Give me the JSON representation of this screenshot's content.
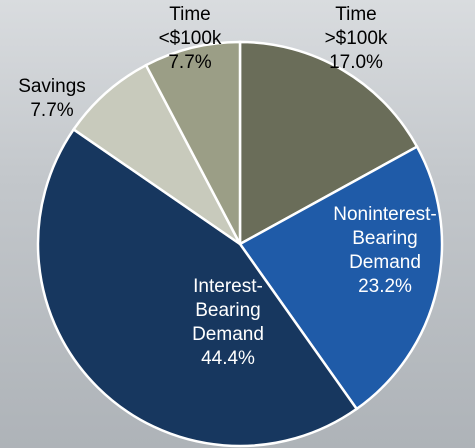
{
  "chart_data": {
    "type": "pie",
    "categories": [
      "Time >$100k",
      "Noninterest-Bearing Demand",
      "Interest-Bearing Demand",
      "Savings",
      "Time <$100k"
    ],
    "values": [
      17.0,
      23.2,
      44.4,
      7.7,
      7.7
    ],
    "value_labels": [
      "17.0%",
      "23.2%",
      "44.4%",
      "7.7%",
      "7.7%"
    ],
    "colors": [
      "#6a6d59",
      "#1f5ba8",
      "#17375f",
      "#c8cabc",
      "#9b9e86"
    ]
  }
}
